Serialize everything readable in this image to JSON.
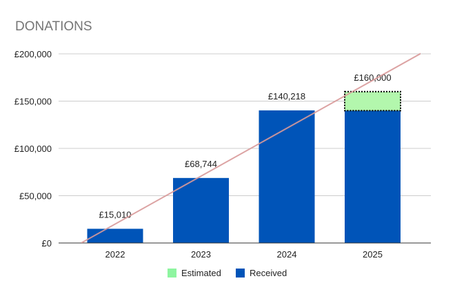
{
  "chart_data": {
    "type": "bar",
    "stacked": true,
    "title": "DONATIONS",
    "categories": [
      "2022",
      "2023",
      "2024",
      "2025"
    ],
    "series": [
      {
        "name": "Received",
        "values": [
          15010,
          68744,
          140218,
          140000
        ],
        "color": "#0054b8"
      },
      {
        "name": "Estimated",
        "values": [
          0,
          0,
          0,
          20000
        ],
        "color": "#b3f7ad",
        "border": "dotted"
      }
    ],
    "data_labels": [
      "£15,010",
      "£68,744",
      "£140,218",
      "£160,000"
    ],
    "yticks": [
      "£0",
      "£50,000",
      "£100,000",
      "£150,000",
      "£200,000"
    ],
    "ylim": [
      0,
      200000
    ],
    "grid": true,
    "trendline": {
      "type": "linear",
      "color": "#d99a9a"
    },
    "legend": {
      "position": "bottom",
      "order": [
        "Estimated",
        "Received"
      ],
      "estimated_swatch": "#8ef5a0"
    }
  }
}
